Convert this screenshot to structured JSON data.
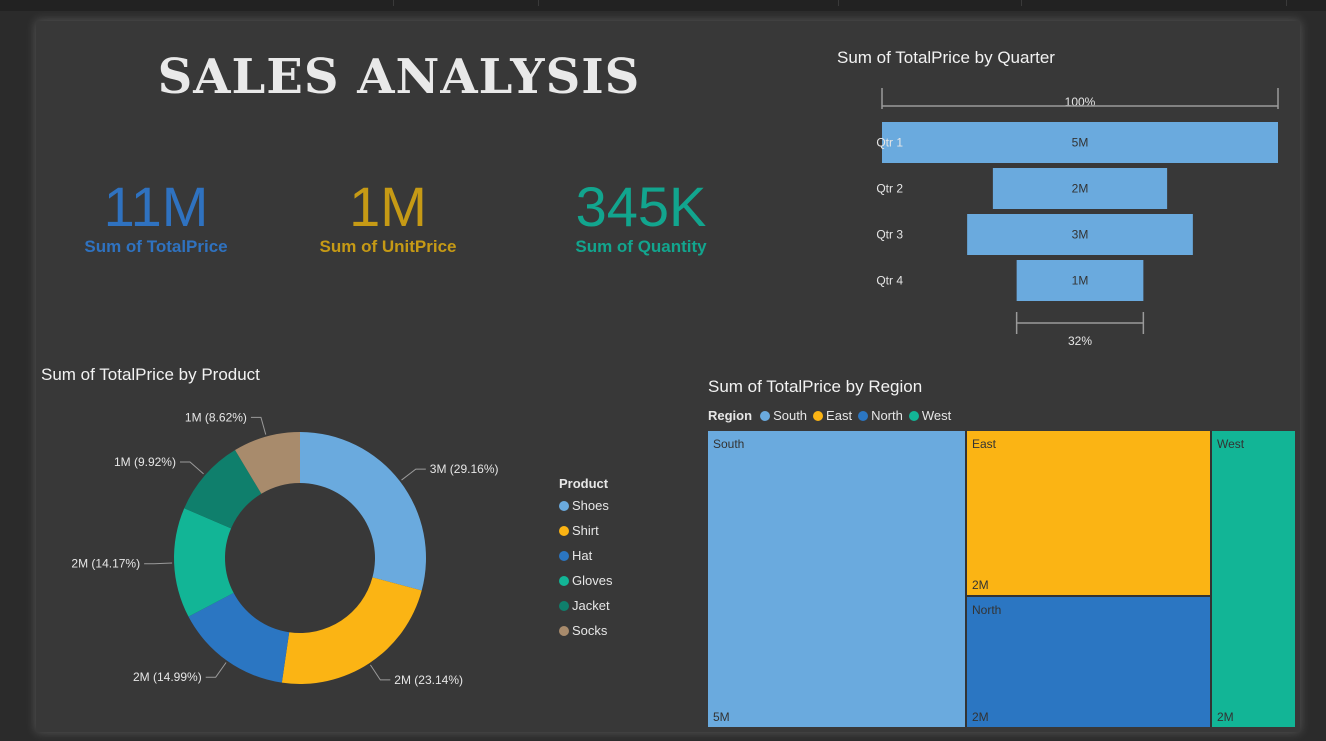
{
  "dashboard": {
    "title": "SALES ANALYSIS",
    "kpis": [
      {
        "value": "11M",
        "label": "Sum of TotalPrice",
        "color": "#2f72c0"
      },
      {
        "value": "1M",
        "label": "Sum of UnitPrice",
        "color": "#c69a15"
      },
      {
        "value": "345K",
        "label": "Sum of Quantity",
        "color": "#12a58e"
      }
    ]
  },
  "chart_data": [
    {
      "type": "funnel",
      "title": "Sum of TotalPrice by Quarter",
      "categories": [
        "Qtr 1",
        "Qtr 2",
        "Qtr 3",
        "Qtr 4"
      ],
      "values": [
        5,
        2,
        3,
        1
      ],
      "value_labels": [
        "5M",
        "2M",
        "3M",
        "1M"
      ],
      "bar_fraction": [
        1.0,
        0.44,
        0.57,
        0.32
      ],
      "top_percent_label": "100%",
      "bottom_percent_label": "32%",
      "color": "#6aaade"
    },
    {
      "type": "pie",
      "title": "Sum of TotalPrice by Product",
      "legend_title": "Product",
      "legend_position": "right",
      "categories": [
        "Shoes",
        "Shirt",
        "Hat",
        "Gloves",
        "Jacket",
        "Socks"
      ],
      "values": [
        29.16,
        23.14,
        14.99,
        14.17,
        9.92,
        8.62
      ],
      "labels": [
        "3M (29.16%)",
        "2M (23.14%)",
        "2M (14.99%)",
        "2M (14.17%)",
        "1M (9.92%)",
        "1M (8.62%)"
      ],
      "colors": [
        "#6aaade",
        "#fbb414",
        "#2b76c2",
        "#12b596",
        "#0f7f6c",
        "#a88b6c"
      ]
    },
    {
      "type": "treemap",
      "title": "Sum of TotalPrice by Region",
      "legend_title": "Region",
      "categories": [
        "South",
        "East",
        "North",
        "West"
      ],
      "value_labels": [
        "5M",
        "2M",
        "2M",
        "2M"
      ],
      "colors": [
        "#6aaade",
        "#fbb414",
        "#2b76c2",
        "#12b596"
      ]
    }
  ]
}
